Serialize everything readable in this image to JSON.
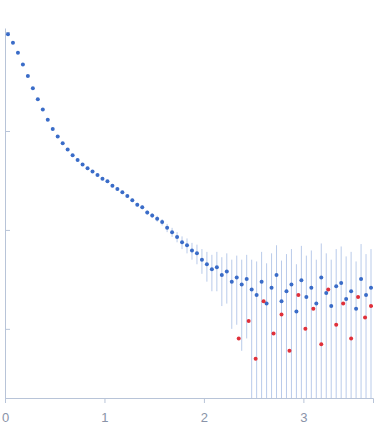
{
  "chart_data": {
    "type": "scatter",
    "log": "y",
    "tick_labels": "x",
    "marker": "circle",
    "xlim": [
      0,
      3.7
    ],
    "xticks": [
      0,
      1,
      2,
      3
    ],
    "ylim": [
      0.0002,
      1.1
    ],
    "yticks": [
      0.001,
      0.01,
      0.1,
      1
    ],
    "series": [
      {
        "color": "#3a6cc8",
        "x": [
          0.03,
          0.08,
          0.13,
          0.18,
          0.23,
          0.28,
          0.33,
          0.38,
          0.43,
          0.48,
          0.53,
          0.58,
          0.63,
          0.68,
          0.73,
          0.78,
          0.83,
          0.88,
          0.93,
          0.98,
          1.03,
          1.08,
          1.13,
          1.18,
          1.23,
          1.28,
          1.33,
          1.38,
          1.43,
          1.48,
          1.53,
          1.58,
          1.63,
          1.68,
          1.73,
          1.78,
          1.83,
          1.88,
          1.93,
          1.98,
          2.03,
          2.08,
          2.13,
          2.18,
          2.23,
          2.28,
          2.33,
          2.38,
          2.43,
          2.48,
          2.53,
          2.58,
          2.63,
          2.68,
          2.73,
          2.78,
          2.83,
          2.88,
          2.93,
          2.98,
          3.03,
          3.08,
          3.13,
          3.18,
          3.23,
          3.28,
          3.33,
          3.38,
          3.43,
          3.48,
          3.53,
          3.58,
          3.63,
          3.68
        ],
        "values": [
          0.95,
          0.78,
          0.62,
          0.47,
          0.36,
          0.27,
          0.21,
          0.165,
          0.13,
          0.105,
          0.088,
          0.075,
          0.065,
          0.057,
          0.051,
          0.046,
          0.042,
          0.039,
          0.036,
          0.033,
          0.031,
          0.028,
          0.026,
          0.024,
          0.022,
          0.02,
          0.018,
          0.017,
          0.015,
          0.014,
          0.013,
          0.012,
          0.0105,
          0.0095,
          0.0085,
          0.0075,
          0.007,
          0.0062,
          0.0058,
          0.005,
          0.0045,
          0.004,
          0.0042,
          0.0035,
          0.0038,
          0.003,
          0.0033,
          0.0028,
          0.0032,
          0.0025,
          0.0022,
          0.003,
          0.0018,
          0.0026,
          0.0035,
          0.0019,
          0.0024,
          0.0028,
          0.0015,
          0.0031,
          0.0021,
          0.0026,
          0.0018,
          0.0033,
          0.0023,
          0.0017,
          0.0027,
          0.0029,
          0.002,
          0.0024,
          0.0016,
          0.0032,
          0.0022,
          0.0026
        ],
        "errors": [
          0.02,
          0.015,
          0.012,
          0.009,
          0.007,
          0.005,
          0.004,
          0.003,
          0.0025,
          0.002,
          0.0018,
          0.0015,
          0.0013,
          0.0012,
          0.0011,
          0.001,
          0.001,
          0.0009,
          0.0009,
          0.0008,
          0.0009,
          0.0009,
          0.0008,
          0.0008,
          0.0008,
          0.0008,
          0.0008,
          0.0008,
          0.0008,
          0.0008,
          0.0009,
          0.0009,
          0.001,
          0.001,
          0.001,
          0.0011,
          0.0012,
          0.0012,
          0.0013,
          0.0014,
          0.0015,
          0.0016,
          0.0018,
          0.0018,
          0.002,
          0.002,
          0.0022,
          0.0022,
          0.0024,
          0.0025,
          0.0026,
          0.003,
          0.0028,
          0.0032,
          0.0035,
          0.003,
          0.0033,
          0.0036,
          0.003,
          0.0038,
          0.0034,
          0.0036,
          0.0032,
          0.004,
          0.0035,
          0.0033,
          0.0037,
          0.0039,
          0.0034,
          0.0036,
          0.0032,
          0.004,
          0.0035,
          0.0038
        ]
      },
      {
        "color": "#e0303a",
        "x": [
          2.35,
          2.45,
          2.52,
          2.6,
          2.7,
          2.78,
          2.86,
          2.95,
          3.02,
          3.1,
          3.18,
          3.25,
          3.33,
          3.4,
          3.48,
          3.55,
          3.62,
          3.68
        ],
        "values": [
          0.0008,
          0.0012,
          0.0005,
          0.0019,
          0.0009,
          0.0014,
          0.0006,
          0.0022,
          0.001,
          0.0016,
          0.0007,
          0.0025,
          0.0011,
          0.0018,
          0.0008,
          0.0021,
          0.0013,
          0.0017
        ]
      }
    ]
  }
}
